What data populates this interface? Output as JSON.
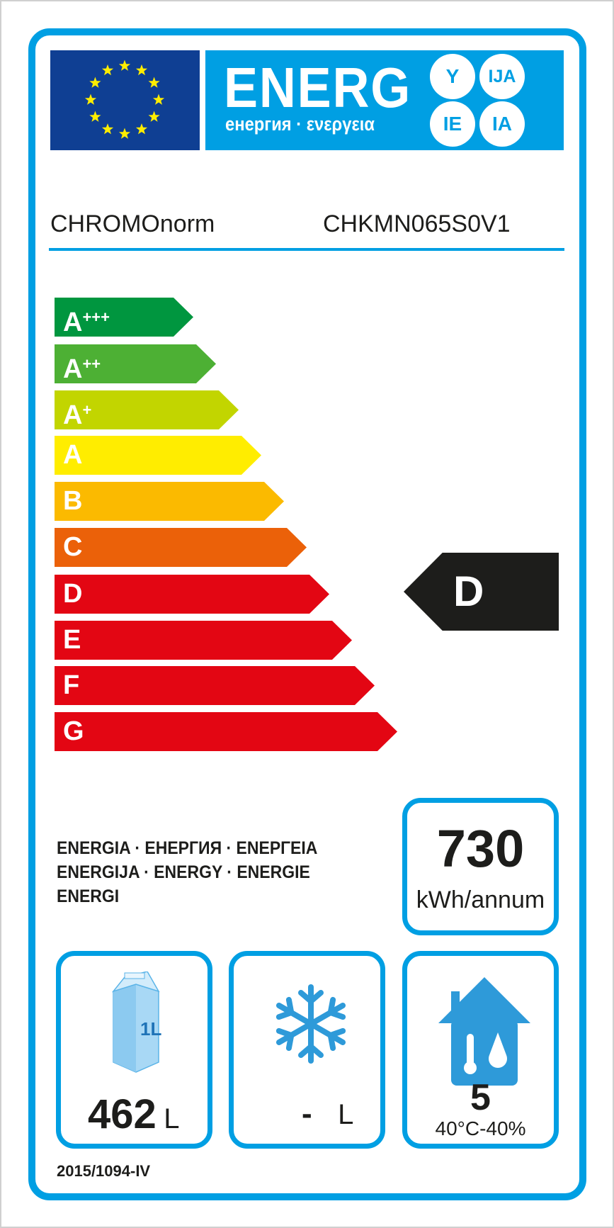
{
  "header": {
    "title": "ENERG",
    "subtitle": "енергия · ενεργεια",
    "suffixes": [
      "Y",
      "IJA",
      "IE",
      "IA"
    ]
  },
  "supplier": "CHROMOnorm",
  "model": "CHKMN065S0V1",
  "scale": [
    {
      "letter": "A",
      "plus": "+++",
      "color": "#00963f"
    },
    {
      "letter": "A",
      "plus": "++",
      "color": "#4db034"
    },
    {
      "letter": "A",
      "plus": "+",
      "color": "#c2d500"
    },
    {
      "letter": "A",
      "plus": "",
      "color": "#ffed00"
    },
    {
      "letter": "B",
      "plus": "",
      "color": "#fbba00"
    },
    {
      "letter": "C",
      "plus": "",
      "color": "#eb6109"
    },
    {
      "letter": "D",
      "plus": "",
      "color": "#e30613"
    },
    {
      "letter": "E",
      "plus": "",
      "color": "#e30613"
    },
    {
      "letter": "F",
      "plus": "",
      "color": "#e30613"
    },
    {
      "letter": "G",
      "plus": "",
      "color": "#e30613"
    }
  ],
  "rating": {
    "class": "D",
    "color": "#1d1d1b"
  },
  "energy_words": [
    "ENERGIA · ЕНЕРГИЯ · ΕΝΕΡΓΕΙΑ",
    "ENERGIJA · ENERGY · ENERGIE",
    "ENERGI"
  ],
  "consumption": {
    "value": "730",
    "unit": "kWh/annum"
  },
  "chill_volume": {
    "value": "462",
    "unit": "L",
    "icon": "milk-carton-icon",
    "icon_text": "1L"
  },
  "freezer_volume": {
    "value": "-",
    "unit": "L",
    "icon": "snowflake-icon"
  },
  "climate": {
    "value": "5",
    "condition": "40°C-40%",
    "icon": "house-climate-icon"
  },
  "regulation": "2015/1094-IV",
  "colors": {
    "frame": "#009fe3",
    "eu_blue": "#0f3f93",
    "star": "#ffed00"
  }
}
